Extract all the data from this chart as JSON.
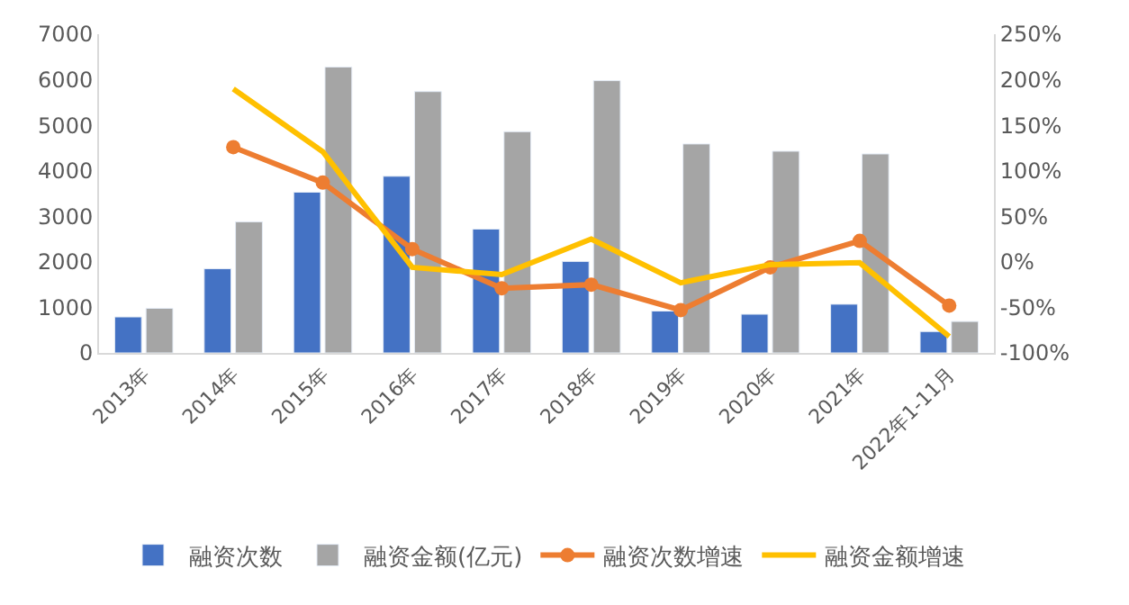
{
  "chart_data": {
    "type": "bar",
    "categories": [
      "2013年",
      "2014年",
      "2015年",
      "2016年",
      "2017年",
      "2018年",
      "2019年",
      "2020年",
      "2021年",
      "2022年1-11月"
    ],
    "series": [
      {
        "name": "融资次数",
        "color": "#4472c4",
        "values": [
          790,
          1850,
          3530,
          3880,
          2720,
          2010,
          920,
          850,
          1070,
          470
        ]
      },
      {
        "name": "融资金额(亿元)",
        "color": "#a5a5a5",
        "values": [
          980,
          2880,
          6280,
          5740,
          4860,
          5980,
          4590,
          4430,
          4370,
          690
        ]
      },
      {
        "name": "融资次数增速",
        "type": "line",
        "axis": "y2",
        "marker": "circle",
        "color": "#ed7d31",
        "values": [
          null,
          126,
          87,
          14,
          -29,
          -25,
          -53,
          -6,
          23,
          -48
        ]
      },
      {
        "name": "融资金额增速",
        "type": "line",
        "axis": "y2",
        "marker": "none",
        "color": "#ffc000",
        "values": [
          null,
          190,
          121,
          -6,
          -14,
          25,
          -23,
          -3,
          -1,
          -82
        ]
      }
    ],
    "ylim": [
      0,
      7000
    ],
    "yticks": [
      0,
      1000,
      2000,
      3000,
      4000,
      5000,
      6000,
      7000
    ],
    "y2lim": [
      -100,
      250
    ],
    "y2ticks": [
      {
        "value": -100,
        "label": "-100%"
      },
      {
        "value": -50,
        "label": "-50%"
      },
      {
        "value": 0,
        "label": "0%"
      },
      {
        "value": 50,
        "label": "50%"
      },
      {
        "value": 100,
        "label": "100%"
      },
      {
        "value": 150,
        "label": "150%"
      },
      {
        "value": 200,
        "label": "200%"
      },
      {
        "value": 250,
        "label": "250%"
      }
    ],
    "legend": "bottom"
  }
}
